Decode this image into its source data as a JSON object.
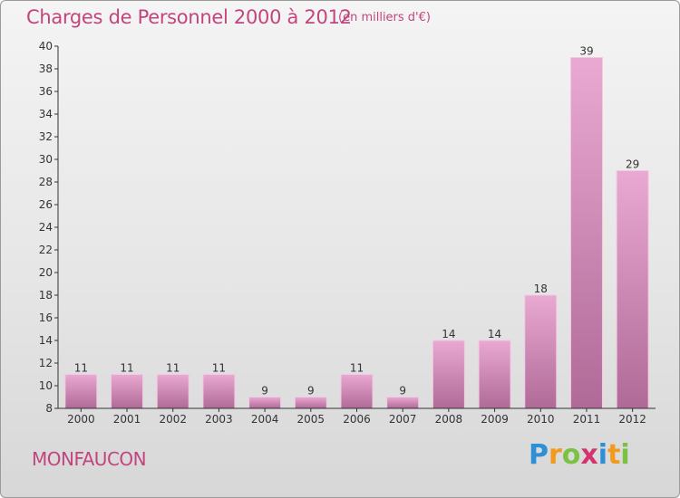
{
  "title": "Charges de Personnel 2000 à 2012",
  "unit_note": "(en milliers d'€)",
  "commune": "MONFAUCON",
  "logo": {
    "letters": [
      "P",
      "r",
      "o",
      "x",
      "i",
      "t",
      "i"
    ],
    "colors": [
      "#2e8fd6",
      "#f29a1e",
      "#7cc242",
      "#d5336f",
      "#2e8fd6",
      "#f29a1e",
      "#7cc242"
    ]
  },
  "colors": {
    "title": "#c2457e",
    "bar_light": "#e9a9d2",
    "bar_dark": "#b06a97",
    "axis": "#333333"
  },
  "chart_data": {
    "type": "bar",
    "title": "Charges de Personnel 2000 à 2012",
    "subtitle": "(en milliers d'€)",
    "categories": [
      "2000",
      "2001",
      "2002",
      "2003",
      "2004",
      "2005",
      "2006",
      "2007",
      "2008",
      "2009",
      "2010",
      "2011",
      "2012"
    ],
    "values": [
      11,
      11,
      11,
      11,
      9,
      9,
      11,
      9,
      14,
      14,
      18,
      39,
      29
    ],
    "xlabel": "",
    "ylabel": "",
    "ylim": [
      8,
      40
    ],
    "yticks": [
      8,
      10,
      12,
      14,
      16,
      18,
      20,
      22,
      24,
      26,
      28,
      30,
      32,
      34,
      36,
      38,
      40
    ],
    "grid": false,
    "legend": "none"
  }
}
